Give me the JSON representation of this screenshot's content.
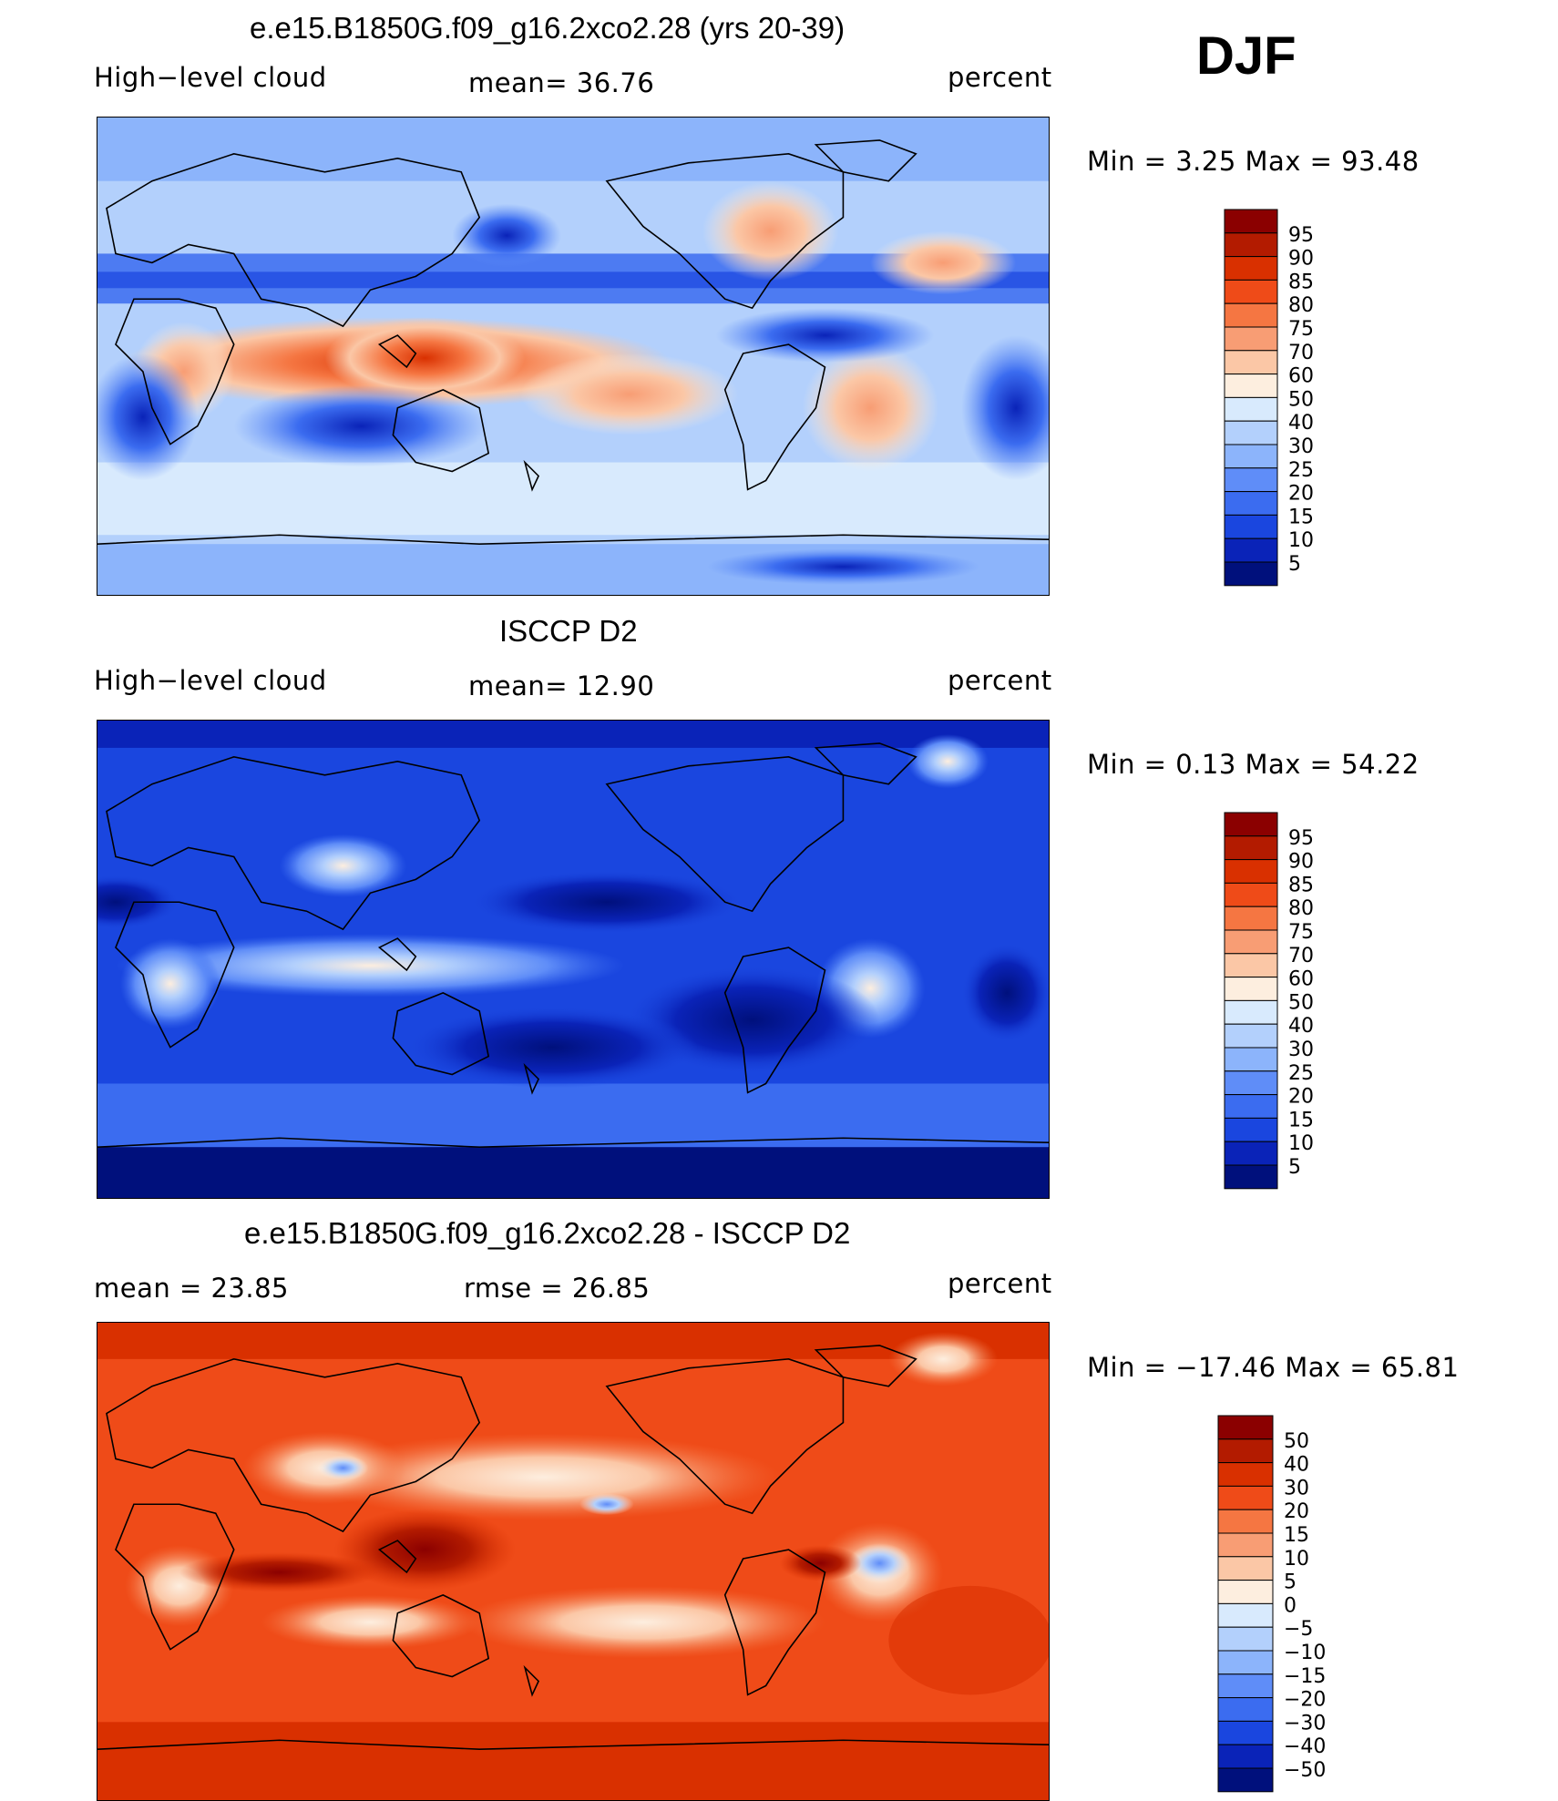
{
  "season": "DJF",
  "panels": [
    {
      "id": "model",
      "title": "e.e15.B1850G.f09_g16.2xco2.28 (yrs 20-39)",
      "left_label": "High−level cloud",
      "center_label": "mean=   36.76",
      "right_label": "percent",
      "minmax": "Min  =     3.25  Max  =    93.48",
      "colorbar": {
        "labels": [
          "95",
          "90",
          "85",
          "80",
          "75",
          "70",
          "60",
          "50",
          "40",
          "30",
          "25",
          "20",
          "15",
          "10",
          "5"
        ],
        "colors": [
          "#8b0000",
          "#b31b00",
          "#d93000",
          "#ef4b18",
          "#f57642",
          "#f89d74",
          "#fbc7a6",
          "#fdeedf",
          "#d8eafd",
          "#b3d0fc",
          "#8cb4fb",
          "#5f8df8",
          "#3b6cf0",
          "#1a46df",
          "#0a23b8",
          "#00107c"
        ]
      }
    },
    {
      "id": "obs",
      "title": "ISCCP D2",
      "left_label": "High−level cloud",
      "center_label": "mean=   12.90",
      "right_label": "percent",
      "minmax": "Min  =     0.13  Max  =    54.22",
      "colorbar": {
        "labels": [
          "95",
          "90",
          "85",
          "80",
          "75",
          "70",
          "60",
          "50",
          "40",
          "30",
          "25",
          "20",
          "15",
          "10",
          "5"
        ],
        "colors": [
          "#8b0000",
          "#b31b00",
          "#d93000",
          "#ef4b18",
          "#f57642",
          "#f89d74",
          "#fbc7a6",
          "#fdeedf",
          "#d8eafd",
          "#b3d0fc",
          "#8cb4fb",
          "#5f8df8",
          "#3b6cf0",
          "#1a46df",
          "#0a23b8",
          "#00107c"
        ]
      }
    },
    {
      "id": "diff",
      "title": "e.e15.B1850G.f09_g16.2xco2.28 - ISCCP D2",
      "left_label": "mean  =    23.85",
      "center_label": "rmse  =    26.85",
      "right_label": "percent",
      "minmax": "Min  = −17.46  Max  =    65.81",
      "colorbar": {
        "labels": [
          "50",
          "40",
          "30",
          "20",
          "15",
          "10",
          "5",
          "0",
          "−5",
          "−10",
          "−15",
          "−20",
          "−30",
          "−40",
          "−50"
        ],
        "colors": [
          "#8b0000",
          "#b31b00",
          "#d93000",
          "#ef4b18",
          "#f57642",
          "#f89d74",
          "#fbc7a6",
          "#fdeedf",
          "#d8eafd",
          "#b3d0fc",
          "#8cb4fb",
          "#5f8df8",
          "#3b6cf0",
          "#1a46df",
          "#0a23b8",
          "#00107c"
        ]
      }
    }
  ]
}
